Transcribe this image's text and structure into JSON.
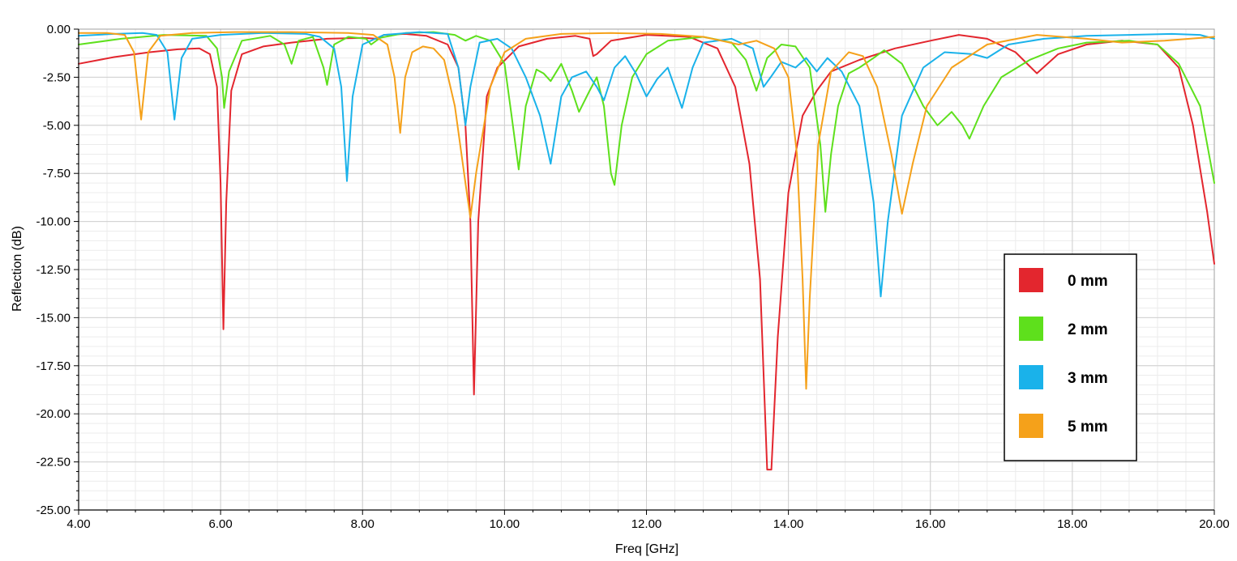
{
  "chart_data": {
    "type": "line",
    "xlabel": "Freq [GHz]",
    "ylabel": "Reflection (dB)",
    "xlim": [
      4,
      20
    ],
    "ylim": [
      -25,
      0
    ],
    "x_ticks": [
      "4.00",
      "6.00",
      "8.00",
      "10.00",
      "12.00",
      "14.00",
      "16.00",
      "18.00",
      "20.00"
    ],
    "y_ticks": [
      "0.00",
      "-2.50",
      "-5.00",
      "-7.50",
      "-10.00",
      "-12.50",
      "-15.00",
      "-17.50",
      "-20.00",
      "-22.50",
      "-25.00"
    ],
    "grid": true,
    "legend_position": "right",
    "series": [
      {
        "name": "0 mm",
        "color": "#e3262e",
        "points": [
          [
            4.0,
            -1.8
          ],
          [
            4.5,
            -1.45
          ],
          [
            5.0,
            -1.2
          ],
          [
            5.4,
            -1.05
          ],
          [
            5.7,
            -1.0
          ],
          [
            5.85,
            -1.3
          ],
          [
            5.95,
            -3.0
          ],
          [
            6.0,
            -8.0
          ],
          [
            6.04,
            -15.6
          ],
          [
            6.08,
            -9.0
          ],
          [
            6.15,
            -3.2
          ],
          [
            6.3,
            -1.3
          ],
          [
            6.6,
            -0.9
          ],
          [
            7.0,
            -0.7
          ],
          [
            7.5,
            -0.5
          ],
          [
            8.0,
            -0.45
          ],
          [
            8.2,
            -0.5
          ],
          [
            8.3,
            -0.3
          ],
          [
            8.6,
            -0.25
          ],
          [
            8.9,
            -0.35
          ],
          [
            9.2,
            -0.8
          ],
          [
            9.35,
            -2.0
          ],
          [
            9.45,
            -5.0
          ],
          [
            9.52,
            -10.0
          ],
          [
            9.57,
            -19.0
          ],
          [
            9.63,
            -10.0
          ],
          [
            9.75,
            -3.5
          ],
          [
            9.9,
            -2.0
          ],
          [
            10.2,
            -0.9
          ],
          [
            10.6,
            -0.5
          ],
          [
            11.0,
            -0.35
          ],
          [
            11.2,
            -0.5
          ],
          [
            11.25,
            -1.4
          ],
          [
            11.3,
            -1.3
          ],
          [
            11.5,
            -0.6
          ],
          [
            12.0,
            -0.3
          ],
          [
            12.6,
            -0.4
          ],
          [
            13.0,
            -1.0
          ],
          [
            13.25,
            -3.0
          ],
          [
            13.45,
            -7.0
          ],
          [
            13.6,
            -13.0
          ],
          [
            13.7,
            -22.9
          ],
          [
            13.76,
            -22.9
          ],
          [
            13.85,
            -16.0
          ],
          [
            14.0,
            -8.5
          ],
          [
            14.2,
            -4.5
          ],
          [
            14.4,
            -3.2
          ],
          [
            14.6,
            -2.2
          ],
          [
            15.0,
            -1.6
          ],
          [
            15.5,
            -1.0
          ],
          [
            16.0,
            -0.6
          ],
          [
            16.4,
            -0.3
          ],
          [
            16.8,
            -0.5
          ],
          [
            17.2,
            -1.2
          ],
          [
            17.5,
            -2.3
          ],
          [
            17.8,
            -1.3
          ],
          [
            18.2,
            -0.8
          ],
          [
            18.7,
            -0.6
          ],
          [
            19.2,
            -0.8
          ],
          [
            19.5,
            -2.0
          ],
          [
            19.7,
            -5.0
          ],
          [
            19.9,
            -9.5
          ],
          [
            20.0,
            -12.2
          ]
        ]
      },
      {
        "name": "2 mm",
        "color": "#5ee01c",
        "points": [
          [
            4.0,
            -0.8
          ],
          [
            4.6,
            -0.5
          ],
          [
            5.2,
            -0.3
          ],
          [
            5.8,
            -0.35
          ],
          [
            5.95,
            -1.0
          ],
          [
            6.02,
            -2.5
          ],
          [
            6.05,
            -4.1
          ],
          [
            6.12,
            -2.2
          ],
          [
            6.3,
            -0.6
          ],
          [
            6.7,
            -0.35
          ],
          [
            6.9,
            -0.8
          ],
          [
            7.0,
            -1.8
          ],
          [
            7.1,
            -0.6
          ],
          [
            7.3,
            -0.4
          ],
          [
            7.45,
            -2.0
          ],
          [
            7.5,
            -2.9
          ],
          [
            7.6,
            -0.8
          ],
          [
            7.8,
            -0.4
          ],
          [
            8.05,
            -0.5
          ],
          [
            8.12,
            -0.8
          ],
          [
            8.25,
            -0.45
          ],
          [
            8.6,
            -0.2
          ],
          [
            9.0,
            -0.15
          ],
          [
            9.3,
            -0.3
          ],
          [
            9.45,
            -0.6
          ],
          [
            9.6,
            -0.35
          ],
          [
            9.8,
            -0.6
          ],
          [
            10.0,
            -1.8
          ],
          [
            10.1,
            -4.5
          ],
          [
            10.2,
            -7.3
          ],
          [
            10.3,
            -4.0
          ],
          [
            10.45,
            -2.1
          ],
          [
            10.55,
            -2.3
          ],
          [
            10.65,
            -2.7
          ],
          [
            10.8,
            -1.8
          ],
          [
            10.95,
            -3.2
          ],
          [
            11.05,
            -4.3
          ],
          [
            11.2,
            -3.2
          ],
          [
            11.3,
            -2.5
          ],
          [
            11.4,
            -4.0
          ],
          [
            11.5,
            -7.5
          ],
          [
            11.55,
            -8.1
          ],
          [
            11.65,
            -5.0
          ],
          [
            11.8,
            -2.5
          ],
          [
            12.0,
            -1.3
          ],
          [
            12.3,
            -0.6
          ],
          [
            12.8,
            -0.4
          ],
          [
            13.2,
            -0.7
          ],
          [
            13.4,
            -1.6
          ],
          [
            13.55,
            -3.2
          ],
          [
            13.7,
            -1.5
          ],
          [
            13.9,
            -0.8
          ],
          [
            14.1,
            -0.9
          ],
          [
            14.3,
            -2.0
          ],
          [
            14.45,
            -6.0
          ],
          [
            14.52,
            -9.5
          ],
          [
            14.6,
            -6.5
          ],
          [
            14.7,
            -4.0
          ],
          [
            14.85,
            -2.3
          ],
          [
            15.0,
            -2.0
          ],
          [
            15.2,
            -1.5
          ],
          [
            15.35,
            -1.1
          ],
          [
            15.6,
            -1.8
          ],
          [
            15.9,
            -4.0
          ],
          [
            16.1,
            -5.0
          ],
          [
            16.3,
            -4.3
          ],
          [
            16.45,
            -5.0
          ],
          [
            16.55,
            -5.7
          ],
          [
            16.75,
            -4.0
          ],
          [
            17.0,
            -2.5
          ],
          [
            17.4,
            -1.6
          ],
          [
            17.8,
            -1.0
          ],
          [
            18.2,
            -0.7
          ],
          [
            18.8,
            -0.6
          ],
          [
            19.2,
            -0.8
          ],
          [
            19.5,
            -1.8
          ],
          [
            19.8,
            -4.0
          ],
          [
            20.0,
            -8.0
          ]
        ]
      },
      {
        "name": "3 mm",
        "color": "#1ab2ea",
        "points": [
          [
            4.0,
            -0.35
          ],
          [
            4.5,
            -0.25
          ],
          [
            4.9,
            -0.2
          ],
          [
            5.1,
            -0.3
          ],
          [
            5.25,
            -1.2
          ],
          [
            5.35,
            -4.7
          ],
          [
            5.45,
            -1.5
          ],
          [
            5.6,
            -0.5
          ],
          [
            6.0,
            -0.3
          ],
          [
            6.6,
            -0.2
          ],
          [
            7.2,
            -0.25
          ],
          [
            7.4,
            -0.4
          ],
          [
            7.6,
            -1.0
          ],
          [
            7.7,
            -3.0
          ],
          [
            7.78,
            -7.9
          ],
          [
            7.86,
            -3.5
          ],
          [
            8.0,
            -0.8
          ],
          [
            8.3,
            -0.3
          ],
          [
            8.8,
            -0.15
          ],
          [
            9.2,
            -0.25
          ],
          [
            9.35,
            -2.0
          ],
          [
            9.45,
            -5.0
          ],
          [
            9.52,
            -3.0
          ],
          [
            9.65,
            -0.7
          ],
          [
            9.9,
            -0.5
          ],
          [
            10.1,
            -1.0
          ],
          [
            10.3,
            -2.5
          ],
          [
            10.5,
            -4.5
          ],
          [
            10.65,
            -7.0
          ],
          [
            10.8,
            -3.5
          ],
          [
            10.95,
            -2.5
          ],
          [
            11.15,
            -2.2
          ],
          [
            11.3,
            -3.0
          ],
          [
            11.4,
            -3.7
          ],
          [
            11.55,
            -2.0
          ],
          [
            11.7,
            -1.4
          ],
          [
            11.85,
            -2.3
          ],
          [
            12.0,
            -3.5
          ],
          [
            12.15,
            -2.6
          ],
          [
            12.3,
            -2.0
          ],
          [
            12.5,
            -4.1
          ],
          [
            12.65,
            -2.0
          ],
          [
            12.8,
            -0.7
          ],
          [
            13.2,
            -0.5
          ],
          [
            13.5,
            -1.0
          ],
          [
            13.65,
            -3.0
          ],
          [
            13.75,
            -2.5
          ],
          [
            13.9,
            -1.7
          ],
          [
            14.1,
            -2.0
          ],
          [
            14.25,
            -1.5
          ],
          [
            14.4,
            -2.2
          ],
          [
            14.55,
            -1.5
          ],
          [
            14.75,
            -2.2
          ],
          [
            15.0,
            -4.0
          ],
          [
            15.2,
            -9.0
          ],
          [
            15.3,
            -13.9
          ],
          [
            15.4,
            -10.0
          ],
          [
            15.6,
            -4.5
          ],
          [
            15.9,
            -2.0
          ],
          [
            16.2,
            -1.2
          ],
          [
            16.6,
            -1.3
          ],
          [
            16.8,
            -1.5
          ],
          [
            17.1,
            -0.8
          ],
          [
            17.6,
            -0.5
          ],
          [
            18.2,
            -0.35
          ],
          [
            18.8,
            -0.3
          ],
          [
            19.4,
            -0.25
          ],
          [
            19.8,
            -0.3
          ],
          [
            20.0,
            -0.5
          ]
        ]
      },
      {
        "name": "5 mm",
        "color": "#f5a11a",
        "points": [
          [
            4.0,
            -0.2
          ],
          [
            4.4,
            -0.2
          ],
          [
            4.65,
            -0.3
          ],
          [
            4.78,
            -1.2
          ],
          [
            4.88,
            -4.7
          ],
          [
            4.98,
            -1.2
          ],
          [
            5.15,
            -0.35
          ],
          [
            5.6,
            -0.2
          ],
          [
            6.2,
            -0.15
          ],
          [
            7.0,
            -0.15
          ],
          [
            7.8,
            -0.2
          ],
          [
            8.15,
            -0.3
          ],
          [
            8.35,
            -0.8
          ],
          [
            8.45,
            -2.5
          ],
          [
            8.53,
            -5.4
          ],
          [
            8.6,
            -2.5
          ],
          [
            8.7,
            -1.2
          ],
          [
            8.85,
            -0.9
          ],
          [
            9.0,
            -1.0
          ],
          [
            9.15,
            -1.6
          ],
          [
            9.3,
            -4.0
          ],
          [
            9.45,
            -8.0
          ],
          [
            9.52,
            -9.8
          ],
          [
            9.6,
            -7.5
          ],
          [
            9.8,
            -3.0
          ],
          [
            10.0,
            -1.2
          ],
          [
            10.3,
            -0.5
          ],
          [
            10.8,
            -0.25
          ],
          [
            11.5,
            -0.2
          ],
          [
            12.2,
            -0.25
          ],
          [
            12.8,
            -0.4
          ],
          [
            13.3,
            -0.8
          ],
          [
            13.55,
            -0.6
          ],
          [
            13.8,
            -1.0
          ],
          [
            14.0,
            -2.5
          ],
          [
            14.12,
            -6.5
          ],
          [
            14.2,
            -13.0
          ],
          [
            14.25,
            -18.7
          ],
          [
            14.3,
            -14.0
          ],
          [
            14.42,
            -6.0
          ],
          [
            14.6,
            -2.2
          ],
          [
            14.85,
            -1.2
          ],
          [
            15.05,
            -1.4
          ],
          [
            15.25,
            -3.0
          ],
          [
            15.45,
            -6.5
          ],
          [
            15.6,
            -9.6
          ],
          [
            15.75,
            -7.0
          ],
          [
            15.95,
            -4.0
          ],
          [
            16.3,
            -2.0
          ],
          [
            16.8,
            -0.8
          ],
          [
            17.5,
            -0.3
          ],
          [
            18.2,
            -0.5
          ],
          [
            18.7,
            -0.7
          ],
          [
            19.3,
            -0.6
          ],
          [
            20.0,
            -0.4
          ]
        ]
      }
    ]
  }
}
